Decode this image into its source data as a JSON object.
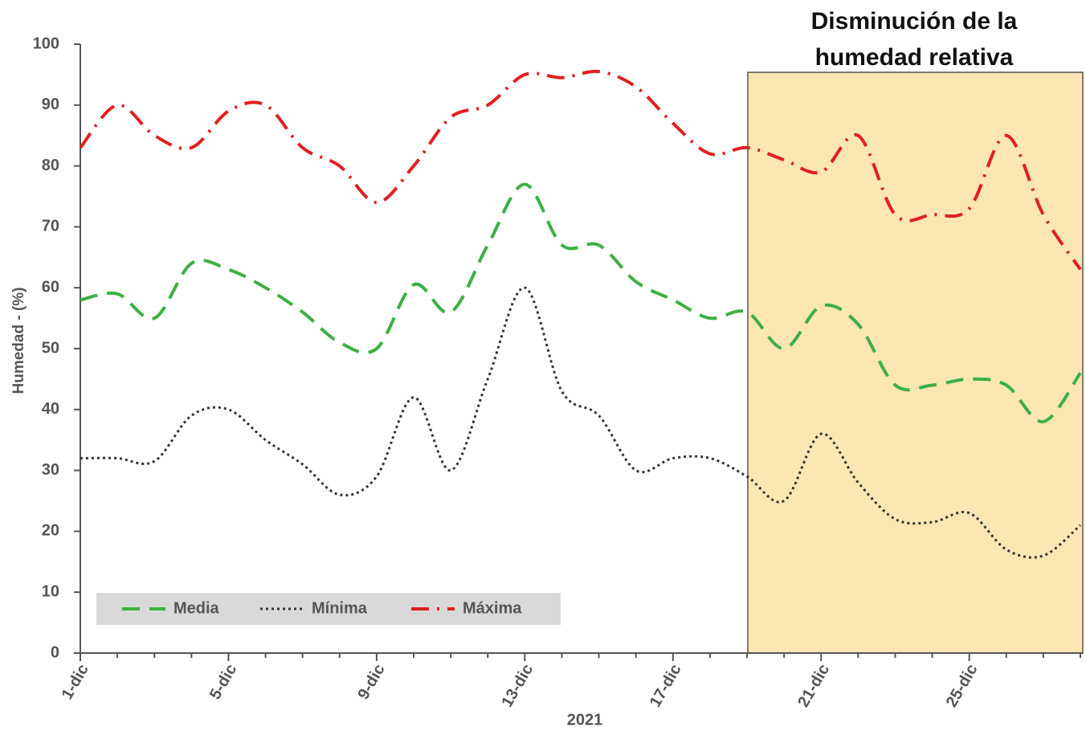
{
  "chart_data": {
    "type": "line",
    "annotation": [
      "Disminución de la",
      "humedad relativa"
    ],
    "x_label": "2021",
    "y_label": "Humedad - (%)",
    "categories": [
      "1-dic",
      null,
      null,
      null,
      "5-dic",
      null,
      null,
      null,
      "9-dic",
      null,
      null,
      null,
      "13-dic",
      null,
      null,
      null,
      "17-dic",
      null,
      null,
      null,
      "21-dic",
      null,
      null,
      null,
      "25-dic",
      null,
      null,
      null
    ],
    "series": [
      {
        "name": "Media",
        "color": "#3cb043",
        "dash": "dashed",
        "values": [
          58,
          59,
          55,
          64,
          63,
          60,
          56,
          51,
          50,
          60.5,
          56,
          67,
          77,
          67,
          67,
          61,
          58,
          55,
          56,
          50,
          57,
          54,
          44,
          44,
          45,
          44,
          38,
          46
        ]
      },
      {
        "name": "Mínima",
        "color": "#333333",
        "dash": "dotted",
        "values": [
          32,
          32,
          31.5,
          39,
          40,
          35,
          31,
          26,
          29,
          42,
          30,
          45,
          60,
          43,
          39,
          30,
          32,
          32,
          29,
          25,
          36,
          28,
          22,
          21.5,
          23,
          17,
          16,
          21
        ]
      },
      {
        "name": "Máxima",
        "color": "#e02020",
        "dash": "dashdot",
        "values": [
          83,
          90,
          85,
          83,
          89,
          90,
          83,
          80,
          74,
          80,
          88,
          90,
          95,
          94.5,
          95.5,
          93,
          87,
          82,
          83,
          81,
          79,
          85,
          72,
          72,
          73,
          85,
          72,
          63
        ]
      }
    ],
    "ylim": [
      0,
      100
    ],
    "yticks": [
      0,
      10,
      20,
      30,
      40,
      50,
      60,
      70,
      80,
      90,
      100
    ],
    "legend": "lower left"
  }
}
